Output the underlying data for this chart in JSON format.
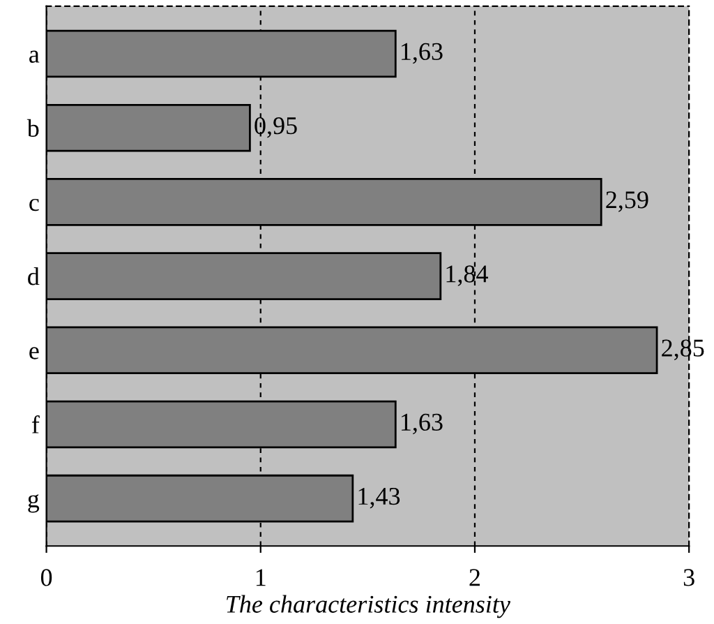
{
  "chart_data": {
    "type": "bar",
    "orientation": "horizontal",
    "xlabel": "The characteristics intensity",
    "categories": [
      "a",
      "b",
      "c",
      "d",
      "e",
      "f",
      "g"
    ],
    "values": [
      1.63,
      0.95,
      2.59,
      1.84,
      2.85,
      1.63,
      1.43
    ],
    "value_labels": [
      "1,63",
      "0,95",
      "2,59",
      "1,84",
      "2,85",
      "1,63",
      "1,43"
    ],
    "color": "#808080",
    "xlim": [
      0,
      3
    ],
    "xticks": [
      0,
      1,
      2,
      3
    ],
    "grid": "x"
  }
}
